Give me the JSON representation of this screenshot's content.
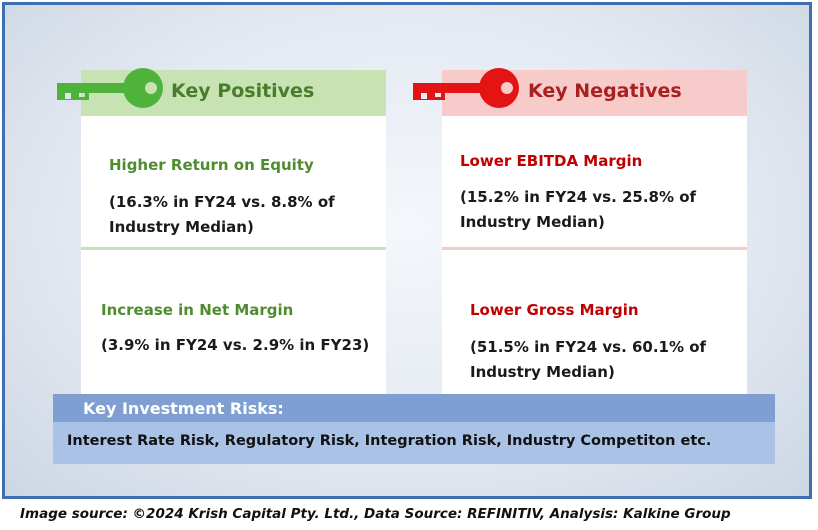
{
  "positives": {
    "title": "Key Positives",
    "items": [
      {
        "title": "Higher Return on Equity",
        "line1": "(16.3% in FY24 vs. 8.8% of",
        "line2": "Industry Median)"
      },
      {
        "title": "Increase in Net Margin",
        "line1": "(3.9% in FY24 vs. 2.9% in FY23)",
        "line2": ""
      }
    ]
  },
  "negatives": {
    "title": "Key Negatives",
    "items": [
      {
        "title": "Lower EBITDA Margin",
        "line1": "(15.2% in FY24 vs. 25.8% of",
        "line2": "Industry Median)"
      },
      {
        "title": "Lower Gross Margin",
        "line1": "(51.5% in FY24 vs. 60.1% of",
        "line2": "Industry Median)"
      }
    ]
  },
  "risks": {
    "title": "Key Investment Risks:",
    "text": "Interest Rate Risk, Regulatory Risk, Integration Risk, Industry Competiton etc."
  },
  "footer": "Image source: ©2024 Krish Capital Pty. Ltd., Data Source: REFINITIV, Analysis: Kalkine Group",
  "colors": {
    "positive_accent": "#4f8b2f",
    "negative_accent": "#c00000",
    "risk_header": "#7f9fd2",
    "frame_border": "#3f6fb0"
  },
  "icons": {
    "positive": "green-key-icon",
    "negative": "red-key-icon"
  }
}
